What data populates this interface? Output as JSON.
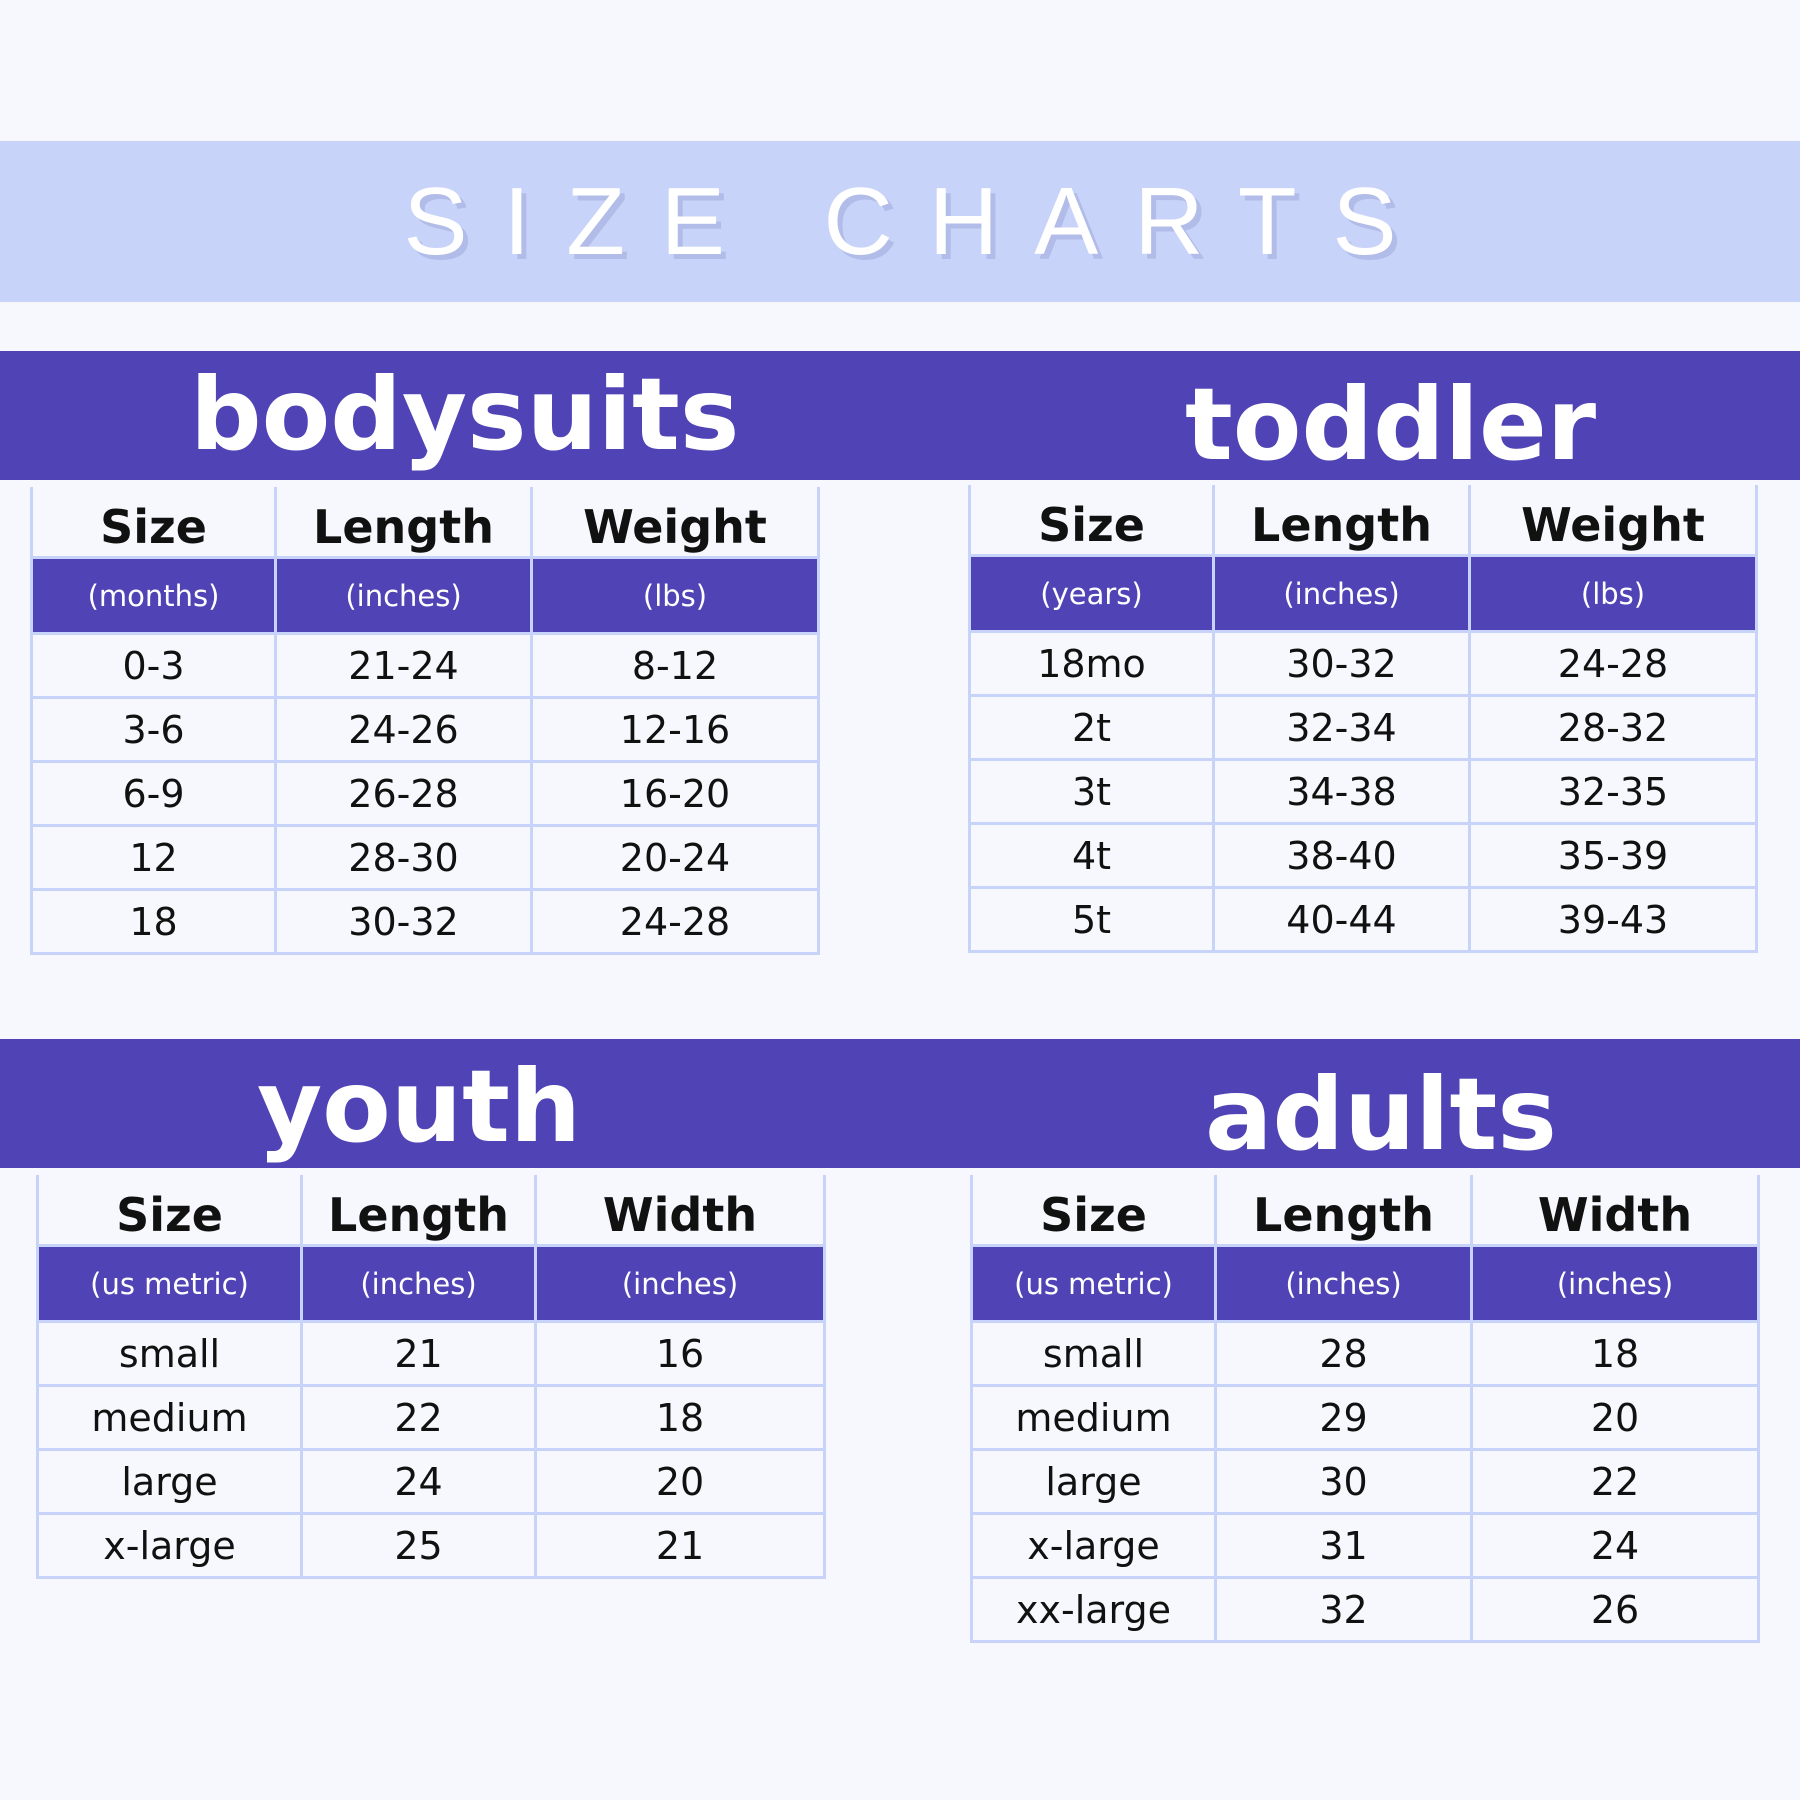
{
  "title": "SIZE CHARTS",
  "sections": [
    {
      "heading": "bodysuits",
      "columns": [
        "Size",
        "Length",
        "Weight"
      ],
      "units": [
        "(months)",
        "(inches)",
        "(lbs)"
      ],
      "rows": [
        [
          "0-3",
          "21-24",
          "8-12"
        ],
        [
          "3-6",
          "24-26",
          "12-16"
        ],
        [
          "6-9",
          "26-28",
          "16-20"
        ],
        [
          "12",
          "28-30",
          "20-24"
        ],
        [
          "18",
          "30-32",
          "24-28"
        ]
      ]
    },
    {
      "heading": "toddler",
      "columns": [
        "Size",
        "Length",
        "Weight"
      ],
      "units": [
        "(years)",
        "(inches)",
        "(lbs)"
      ],
      "rows": [
        [
          "18mo",
          "30-32",
          "24-28"
        ],
        [
          "2t",
          "32-34",
          "28-32"
        ],
        [
          "3t",
          "34-38",
          "32-35"
        ],
        [
          "4t",
          "38-40",
          "35-39"
        ],
        [
          "5t",
          "40-44",
          "39-43"
        ]
      ]
    },
    {
      "heading": "youth",
      "columns": [
        "Size",
        "Length",
        "Width"
      ],
      "units": [
        "(us metric)",
        "(inches)",
        "(inches)"
      ],
      "rows": [
        [
          "small",
          "21",
          "16"
        ],
        [
          "medium",
          "22",
          "18"
        ],
        [
          "large",
          "24",
          "20"
        ],
        [
          "x-large",
          "25",
          "21"
        ]
      ]
    },
    {
      "heading": "adults",
      "columns": [
        "Size",
        "Length",
        "Width"
      ],
      "units": [
        "(us metric)",
        "(inches)",
        "(inches)"
      ],
      "rows": [
        [
          "small",
          "28",
          "18"
        ],
        [
          "medium",
          "29",
          "20"
        ],
        [
          "large",
          "30",
          "22"
        ],
        [
          "x-large",
          "31",
          "24"
        ],
        [
          "xx-large",
          "32",
          "26"
        ]
      ]
    }
  ],
  "colors": {
    "accent": "#4f43b5",
    "light": "#c8d3f9",
    "background": "#f7f8fd"
  }
}
